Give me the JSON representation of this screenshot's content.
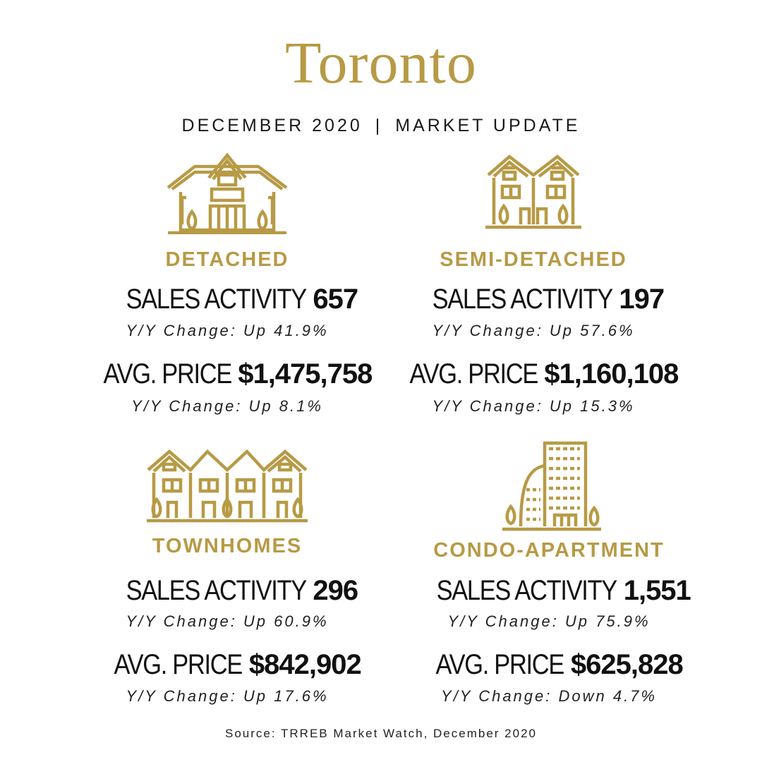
{
  "header": {
    "title": "Toronto",
    "date": "DECEMBER 2020",
    "separator": "|",
    "update": "MARKET UPDATE"
  },
  "accent_color": "#b79a45",
  "panels": [
    {
      "icon": "detached-house-icon",
      "title": "DETACHED",
      "sales_label": "SALES ACTIVITY",
      "sales_value": "657",
      "sales_change": "Y/Y Change: Up 41.9%",
      "price_label": "AVG. PRICE",
      "price_value": "$1,475,758",
      "price_change": "Y/Y Change: Up 8.1%"
    },
    {
      "icon": "semi-detached-house-icon",
      "title": "SEMI-DETACHED",
      "sales_label": "SALES ACTIVITY",
      "sales_value": "197",
      "sales_change": "Y/Y Change: Up 57.6%",
      "price_label": "AVG. PRICE",
      "price_value": "$1,160,108",
      "price_change": "Y/Y Change: Up 15.3%"
    },
    {
      "icon": "townhomes-icon",
      "title": "TOWNHOMES",
      "sales_label": "SALES ACTIVITY",
      "sales_value": "296",
      "sales_change": "Y/Y Change: Up 60.9%",
      "price_label": "AVG. PRICE",
      "price_value": "$842,902",
      "price_change": "Y/Y Change: Up 17.6%"
    },
    {
      "icon": "condo-apartment-icon",
      "title": "CONDO-APARTMENT",
      "sales_label": "SALES ACTIVITY",
      "sales_value": "1,551",
      "sales_change": "Y/Y Change: Up 75.9%",
      "price_label": "AVG. PRICE",
      "price_value": "$625,828",
      "price_change": "Y/Y Change: Down 4.7%"
    }
  ],
  "source": "Source: TRREB Market Watch, December 2020"
}
